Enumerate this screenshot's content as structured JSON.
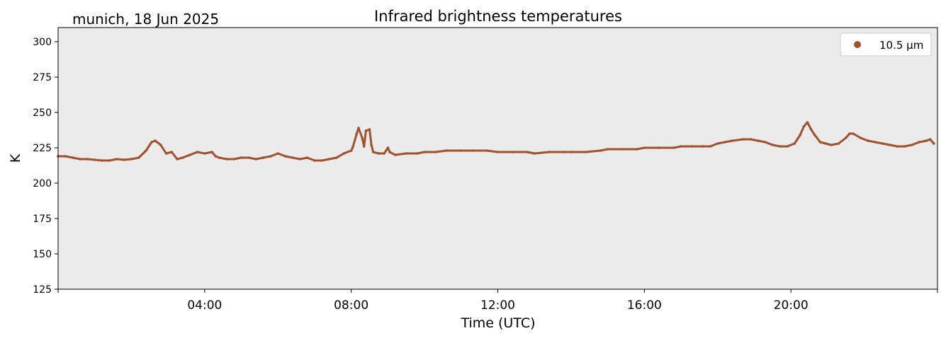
{
  "chart_data": {
    "type": "scatter",
    "title": "Infrared brightness temperatures",
    "location_date": "munich, 18 Jun 2025",
    "xlabel": "Time (UTC)",
    "ylabel": "K",
    "xlim_hours": [
      0,
      24
    ],
    "ylim": [
      125,
      310
    ],
    "yticks": [
      125,
      150,
      175,
      200,
      225,
      250,
      275,
      300
    ],
    "xticks": [
      {
        "hour": 4,
        "label": "04:00"
      },
      {
        "hour": 8,
        "label": "08:00"
      },
      {
        "hour": 12,
        "label": "12:00"
      },
      {
        "hour": 16,
        "label": "16:00"
      },
      {
        "hour": 20,
        "label": "20:00"
      }
    ],
    "grid": false,
    "legend_placement": "top-right",
    "background_color": "#ebebeb",
    "series": [
      {
        "name": "10.5 µm",
        "color": "#a0522d",
        "points": [
          [
            0.0,
            219
          ],
          [
            0.2,
            219
          ],
          [
            0.4,
            218
          ],
          [
            0.6,
            217
          ],
          [
            0.8,
            217
          ],
          [
            1.0,
            216.5
          ],
          [
            1.2,
            216
          ],
          [
            1.4,
            216
          ],
          [
            1.6,
            217
          ],
          [
            1.8,
            216.5
          ],
          [
            2.0,
            217
          ],
          [
            2.2,
            218
          ],
          [
            2.4,
            223
          ],
          [
            2.55,
            229
          ],
          [
            2.65,
            230
          ],
          [
            2.8,
            227
          ],
          [
            2.95,
            221
          ],
          [
            3.1,
            222
          ],
          [
            3.25,
            217
          ],
          [
            3.4,
            218
          ],
          [
            3.6,
            220
          ],
          [
            3.8,
            222
          ],
          [
            4.0,
            221
          ],
          [
            4.2,
            222
          ],
          [
            4.3,
            219
          ],
          [
            4.4,
            218
          ],
          [
            4.6,
            217
          ],
          [
            4.8,
            217
          ],
          [
            5.0,
            218
          ],
          [
            5.2,
            218
          ],
          [
            5.4,
            217
          ],
          [
            5.6,
            218
          ],
          [
            5.8,
            219
          ],
          [
            6.0,
            221
          ],
          [
            6.2,
            219
          ],
          [
            6.4,
            218
          ],
          [
            6.6,
            217
          ],
          [
            6.8,
            218
          ],
          [
            7.0,
            216
          ],
          [
            7.2,
            216
          ],
          [
            7.4,
            217
          ],
          [
            7.6,
            218
          ],
          [
            7.8,
            221
          ],
          [
            8.0,
            223
          ],
          [
            8.05,
            226
          ],
          [
            8.15,
            235
          ],
          [
            8.2,
            239
          ],
          [
            8.3,
            232
          ],
          [
            8.35,
            226
          ],
          [
            8.4,
            237
          ],
          [
            8.5,
            238
          ],
          [
            8.55,
            227
          ],
          [
            8.6,
            222
          ],
          [
            8.75,
            221
          ],
          [
            8.9,
            221
          ],
          [
            9.0,
            225
          ],
          [
            9.05,
            222
          ],
          [
            9.2,
            220
          ],
          [
            9.5,
            221
          ],
          [
            9.8,
            221
          ],
          [
            10.0,
            222
          ],
          [
            10.3,
            222
          ],
          [
            10.6,
            223
          ],
          [
            11.0,
            223
          ],
          [
            11.3,
            223
          ],
          [
            11.7,
            223
          ],
          [
            12.0,
            222
          ],
          [
            12.4,
            222
          ],
          [
            12.8,
            222
          ],
          [
            13.0,
            221
          ],
          [
            13.4,
            222
          ],
          [
            13.8,
            222
          ],
          [
            14.0,
            222
          ],
          [
            14.4,
            222
          ],
          [
            14.8,
            223
          ],
          [
            15.0,
            224
          ],
          [
            15.4,
            224
          ],
          [
            15.8,
            224
          ],
          [
            16.0,
            225
          ],
          [
            16.4,
            225
          ],
          [
            16.8,
            225
          ],
          [
            17.0,
            226
          ],
          [
            17.3,
            226
          ],
          [
            17.6,
            226
          ],
          [
            17.8,
            226
          ],
          [
            18.0,
            228
          ],
          [
            18.2,
            229
          ],
          [
            18.4,
            230
          ],
          [
            18.7,
            231
          ],
          [
            18.9,
            231
          ],
          [
            19.1,
            230
          ],
          [
            19.3,
            229
          ],
          [
            19.5,
            227
          ],
          [
            19.7,
            226
          ],
          [
            19.9,
            226
          ],
          [
            20.1,
            228
          ],
          [
            20.25,
            234
          ],
          [
            20.35,
            240
          ],
          [
            20.45,
            243
          ],
          [
            20.55,
            238
          ],
          [
            20.65,
            234
          ],
          [
            20.8,
            229
          ],
          [
            20.95,
            228
          ],
          [
            21.1,
            227
          ],
          [
            21.3,
            228
          ],
          [
            21.5,
            232
          ],
          [
            21.6,
            235
          ],
          [
            21.7,
            235
          ],
          [
            21.9,
            232
          ],
          [
            22.1,
            230
          ],
          [
            22.3,
            229
          ],
          [
            22.5,
            228
          ],
          [
            22.7,
            227
          ],
          [
            22.9,
            226
          ],
          [
            23.1,
            226
          ],
          [
            23.3,
            227
          ],
          [
            23.5,
            229
          ],
          [
            23.7,
            230
          ],
          [
            23.8,
            231
          ],
          [
            23.9,
            228
          ]
        ]
      }
    ]
  }
}
